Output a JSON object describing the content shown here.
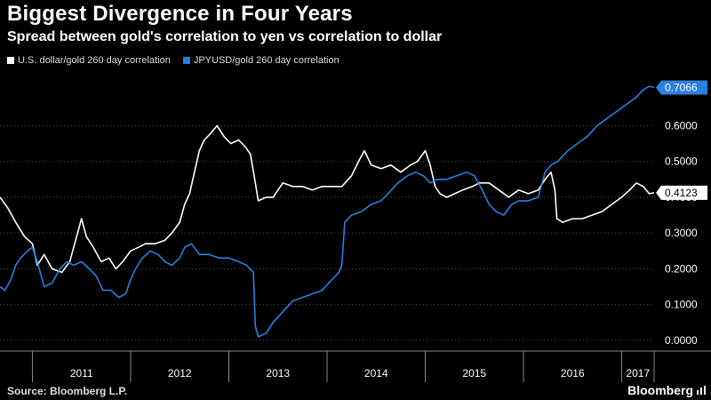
{
  "title": "Biggest Divergence in Four Years",
  "subtitle": "Spread between gold's correlation to yen vs correlation to dollar",
  "source": "Source: Bloomberg L.P.",
  "brand": "Bloomberg",
  "colors": {
    "background": "#000000",
    "usd_series": "#ffffff",
    "jpy_series": "#2b7fe0",
    "grid": "#555555",
    "tick_text": "#ffffff"
  },
  "icons": {
    "brand": "bar-chart-icon"
  },
  "chart_data": {
    "type": "line",
    "xlabel": "",
    "ylabel": "",
    "ylim": [
      -0.03,
      0.74
    ],
    "xlim": [
      2010.67,
      2017.33
    ],
    "yticks": [
      0.0,
      0.1,
      0.2,
      0.3,
      0.4,
      0.5,
      0.6
    ],
    "ytick_labels": [
      "0.0000",
      "0.1000",
      "0.2000",
      "0.3000",
      "0.4000",
      "0.5000",
      "0.6000"
    ],
    "xtick_labels": [
      "2011",
      "2012",
      "2013",
      "2014",
      "2015",
      "2016",
      "2017"
    ],
    "year_starts": [
      2011,
      2012,
      2013,
      2014,
      2015,
      2016,
      2017
    ],
    "grid": true,
    "legend_position": "top-left",
    "series": [
      {
        "name": "U.S. dollar/gold 260 day correlation",
        "color": "#ffffff",
        "last_value_label": "0.4123",
        "points": [
          [
            2010.67,
            0.4
          ],
          [
            2010.75,
            0.37
          ],
          [
            2010.83,
            0.33
          ],
          [
            2010.92,
            0.29
          ],
          [
            2011.0,
            0.27
          ],
          [
            2011.05,
            0.21
          ],
          [
            2011.12,
            0.24
          ],
          [
            2011.2,
            0.2
          ],
          [
            2011.3,
            0.19
          ],
          [
            2011.38,
            0.22
          ],
          [
            2011.45,
            0.29
          ],
          [
            2011.5,
            0.34
          ],
          [
            2011.55,
            0.29
          ],
          [
            2011.62,
            0.26
          ],
          [
            2011.7,
            0.22
          ],
          [
            2011.78,
            0.23
          ],
          [
            2011.85,
            0.2
          ],
          [
            2011.92,
            0.22
          ],
          [
            2012.0,
            0.25
          ],
          [
            2012.08,
            0.26
          ],
          [
            2012.15,
            0.27
          ],
          [
            2012.25,
            0.27
          ],
          [
            2012.35,
            0.28
          ],
          [
            2012.42,
            0.3
          ],
          [
            2012.5,
            0.33
          ],
          [
            2012.55,
            0.38
          ],
          [
            2012.6,
            0.41
          ],
          [
            2012.65,
            0.47
          ],
          [
            2012.7,
            0.53
          ],
          [
            2012.75,
            0.56
          ],
          [
            2012.82,
            0.58
          ],
          [
            2012.88,
            0.6
          ],
          [
            2012.95,
            0.57
          ],
          [
            2013.02,
            0.55
          ],
          [
            2013.1,
            0.56
          ],
          [
            2013.17,
            0.54
          ],
          [
            2013.22,
            0.52
          ],
          [
            2013.27,
            0.44
          ],
          [
            2013.3,
            0.39
          ],
          [
            2013.38,
            0.4
          ],
          [
            2013.45,
            0.4
          ],
          [
            2013.55,
            0.44
          ],
          [
            2013.65,
            0.43
          ],
          [
            2013.75,
            0.43
          ],
          [
            2013.85,
            0.42
          ],
          [
            2013.95,
            0.43
          ],
          [
            2014.05,
            0.43
          ],
          [
            2014.15,
            0.43
          ],
          [
            2014.25,
            0.46
          ],
          [
            2014.32,
            0.5
          ],
          [
            2014.38,
            0.53
          ],
          [
            2014.45,
            0.49
          ],
          [
            2014.55,
            0.48
          ],
          [
            2014.65,
            0.49
          ],
          [
            2014.75,
            0.47
          ],
          [
            2014.85,
            0.49
          ],
          [
            2014.92,
            0.5
          ],
          [
            2015.0,
            0.53
          ],
          [
            2015.05,
            0.49
          ],
          [
            2015.1,
            0.43
          ],
          [
            2015.15,
            0.41
          ],
          [
            2015.22,
            0.4
          ],
          [
            2015.3,
            0.41
          ],
          [
            2015.38,
            0.42
          ],
          [
            2015.48,
            0.43
          ],
          [
            2015.55,
            0.44
          ],
          [
            2015.65,
            0.44
          ],
          [
            2015.75,
            0.42
          ],
          [
            2015.85,
            0.4
          ],
          [
            2015.95,
            0.42
          ],
          [
            2016.05,
            0.41
          ],
          [
            2016.15,
            0.42
          ],
          [
            2016.22,
            0.45
          ],
          [
            2016.28,
            0.47
          ],
          [
            2016.32,
            0.42
          ],
          [
            2016.34,
            0.34
          ],
          [
            2016.4,
            0.33
          ],
          [
            2016.5,
            0.34
          ],
          [
            2016.6,
            0.34
          ],
          [
            2016.7,
            0.35
          ],
          [
            2016.8,
            0.36
          ],
          [
            2016.9,
            0.38
          ],
          [
            2017.0,
            0.4
          ],
          [
            2017.08,
            0.42
          ],
          [
            2017.15,
            0.44
          ],
          [
            2017.22,
            0.43
          ],
          [
            2017.28,
            0.41
          ],
          [
            2017.33,
            0.4123
          ]
        ]
      },
      {
        "name": "JPYUSD/gold 260 day correlation",
        "color": "#2b7fe0",
        "last_value_label": "0.7066",
        "points": [
          [
            2010.67,
            0.15
          ],
          [
            2010.72,
            0.14
          ],
          [
            2010.78,
            0.17
          ],
          [
            2010.83,
            0.21
          ],
          [
            2010.88,
            0.23
          ],
          [
            2010.95,
            0.25
          ],
          [
            2011.0,
            0.26
          ],
          [
            2011.05,
            0.22
          ],
          [
            2011.12,
            0.15
          ],
          [
            2011.2,
            0.16
          ],
          [
            2011.28,
            0.2
          ],
          [
            2011.35,
            0.22
          ],
          [
            2011.42,
            0.21
          ],
          [
            2011.5,
            0.22
          ],
          [
            2011.58,
            0.2
          ],
          [
            2011.65,
            0.18
          ],
          [
            2011.72,
            0.14
          ],
          [
            2011.8,
            0.14
          ],
          [
            2011.88,
            0.12
          ],
          [
            2011.95,
            0.13
          ],
          [
            2012.0,
            0.17
          ],
          [
            2012.05,
            0.2
          ],
          [
            2012.12,
            0.23
          ],
          [
            2012.2,
            0.25
          ],
          [
            2012.28,
            0.24
          ],
          [
            2012.35,
            0.22
          ],
          [
            2012.42,
            0.21
          ],
          [
            2012.5,
            0.23
          ],
          [
            2012.55,
            0.26
          ],
          [
            2012.62,
            0.27
          ],
          [
            2012.7,
            0.24
          ],
          [
            2012.8,
            0.24
          ],
          [
            2012.9,
            0.23
          ],
          [
            2013.0,
            0.23
          ],
          [
            2013.1,
            0.22
          ],
          [
            2013.18,
            0.21
          ],
          [
            2013.25,
            0.19
          ],
          [
            2013.27,
            0.04
          ],
          [
            2013.3,
            0.01
          ],
          [
            2013.38,
            0.02
          ],
          [
            2013.45,
            0.05
          ],
          [
            2013.55,
            0.08
          ],
          [
            2013.65,
            0.11
          ],
          [
            2013.75,
            0.12
          ],
          [
            2013.85,
            0.13
          ],
          [
            2013.95,
            0.14
          ],
          [
            2014.05,
            0.17
          ],
          [
            2014.12,
            0.19
          ],
          [
            2014.15,
            0.21
          ],
          [
            2014.18,
            0.33
          ],
          [
            2014.25,
            0.35
          ],
          [
            2014.35,
            0.36
          ],
          [
            2014.45,
            0.38
          ],
          [
            2014.55,
            0.39
          ],
          [
            2014.62,
            0.41
          ],
          [
            2014.72,
            0.44
          ],
          [
            2014.82,
            0.46
          ],
          [
            2014.9,
            0.47
          ],
          [
            2014.98,
            0.46
          ],
          [
            2015.05,
            0.44
          ],
          [
            2015.12,
            0.45
          ],
          [
            2015.22,
            0.45
          ],
          [
            2015.32,
            0.46
          ],
          [
            2015.42,
            0.47
          ],
          [
            2015.5,
            0.46
          ],
          [
            2015.58,
            0.42
          ],
          [
            2015.65,
            0.38
          ],
          [
            2015.72,
            0.36
          ],
          [
            2015.8,
            0.35
          ],
          [
            2015.88,
            0.38
          ],
          [
            2015.95,
            0.39
          ],
          [
            2016.05,
            0.39
          ],
          [
            2016.15,
            0.4
          ],
          [
            2016.22,
            0.47
          ],
          [
            2016.28,
            0.49
          ],
          [
            2016.35,
            0.5
          ],
          [
            2016.45,
            0.53
          ],
          [
            2016.55,
            0.55
          ],
          [
            2016.65,
            0.57
          ],
          [
            2016.75,
            0.6
          ],
          [
            2016.85,
            0.62
          ],
          [
            2016.95,
            0.64
          ],
          [
            2017.05,
            0.66
          ],
          [
            2017.15,
            0.68
          ],
          [
            2017.22,
            0.7
          ],
          [
            2017.28,
            0.71
          ],
          [
            2017.33,
            0.7066
          ]
        ]
      }
    ]
  }
}
